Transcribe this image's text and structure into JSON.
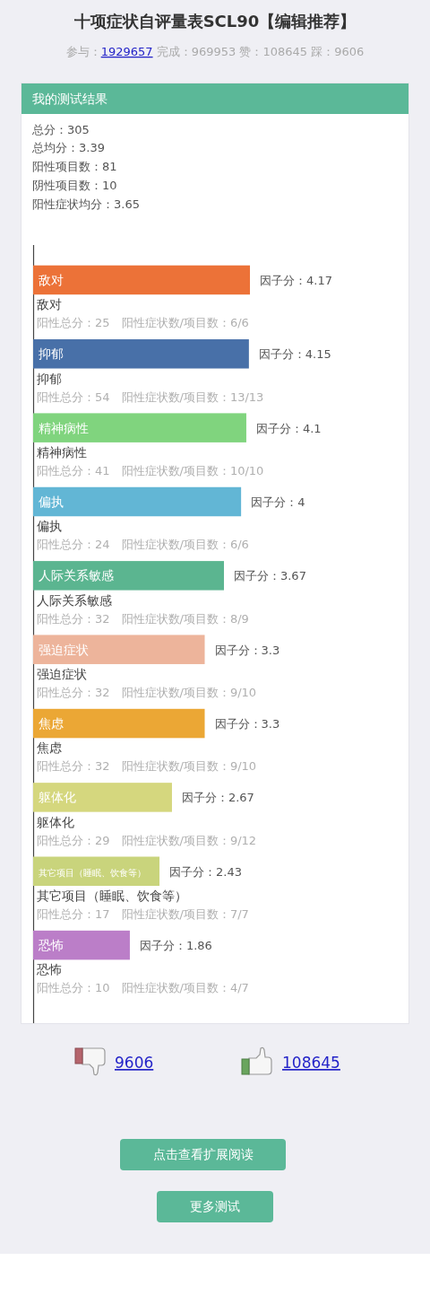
{
  "chart_data": {
    "type": "bar",
    "orientation": "horizontal",
    "title": "十项症状自评量表SCL90【编辑推荐】",
    "subtitle": "参与：1929657 完成：969953 赞：108645 踩：9606",
    "categories": [
      "敌对",
      "抑郁",
      "精神病性",
      "偏执",
      "人际关系敏感",
      "强迫症状",
      "焦虑",
      "躯体化",
      "其它项目（睡眠、饮食等）",
      "恐怖"
    ],
    "values": [
      4.17,
      4.15,
      4.1,
      4,
      3.67,
      3.3,
      3.3,
      2.67,
      2.43,
      1.86
    ],
    "colors": [
      "#ec7238",
      "#4870a8",
      "#80d47e",
      "#62b6d5",
      "#5bb590",
      "#edb49b",
      "#eba735",
      "#d5d77e",
      "#c9d47c",
      "#bb7ec8"
    ],
    "value_labels": [
      "因子分：4.17",
      "因子分：4.15",
      "因子分：4.1",
      "因子分：4",
      "因子分：3.67",
      "因子分：3.3",
      "因子分：3.3",
      "因子分：2.67",
      "因子分：2.43",
      "因子分：1.86"
    ],
    "tick_labels": "y",
    "annotations": [
      "我的测试结果",
      "总分：305",
      "总均分：3.39",
      "阳性项目数：81",
      "阴性项目数：10",
      "阳性症状均分：3.65",
      "阳性总分：25　阳性症状数/项目数：6/6",
      "阳性总分：54　阳性症状数/项目数：13/13",
      "阳性总分：41　阳性症状数/项目数：10/10",
      "阳性总分：24　阳性症状数/项目数：6/6",
      "阳性总分：32　阳性症状数/项目数：8/9",
      "阳性总分：32　阳性症状数/项目数：9/10",
      "阳性总分：32　阳性症状数/项目数：9/10",
      "阳性总分：29　阳性症状数/项目数：9/12",
      "阳性总分：17　阳性症状数/项目数：7/7",
      "阳性总分：10　阳性症状数/项目数：4/7",
      "9606",
      "108645",
      "点击查看扩展阅读",
      "更多测试"
    ]
  }
}
